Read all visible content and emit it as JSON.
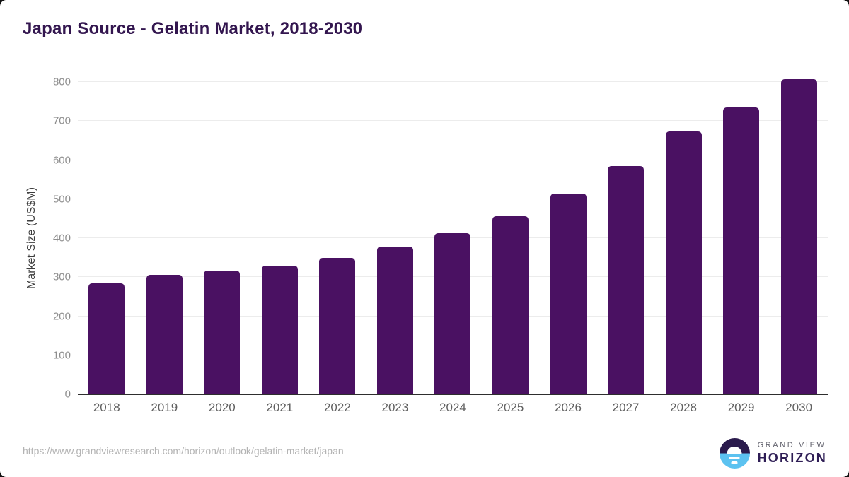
{
  "chart_data": {
    "type": "bar",
    "title": "Japan Source - Gelatin Market, 2018-2030",
    "categories": [
      "2018",
      "2019",
      "2020",
      "2021",
      "2022",
      "2023",
      "2024",
      "2025",
      "2026",
      "2027",
      "2028",
      "2029",
      "2030"
    ],
    "values": [
      284,
      306,
      316,
      330,
      349,
      379,
      413,
      457,
      514,
      585,
      673,
      735,
      807
    ],
    "xlabel": "",
    "ylabel": "Market Size (US$M)",
    "ylim": [
      0,
      800
    ],
    "yticks": [
      0,
      100,
      200,
      300,
      400,
      500,
      600,
      700,
      800
    ],
    "grid": true,
    "legend": "none",
    "bar_color": "#4a1162",
    "title_color": "#33164f",
    "gridline_color": "#ececec",
    "axis_line_color": "#2e2e2e"
  },
  "footer": {
    "source_url": "https://www.grandviewresearch.com/horizon/outlook/gelatin-market/japan",
    "logo_line1": "GRAND VIEW",
    "logo_line2": "HORIZON",
    "logo_colors": {
      "top_half": "#2b1b4d",
      "bottom_half": "#5cc2f0",
      "wordmark": "#2e1d55"
    }
  }
}
